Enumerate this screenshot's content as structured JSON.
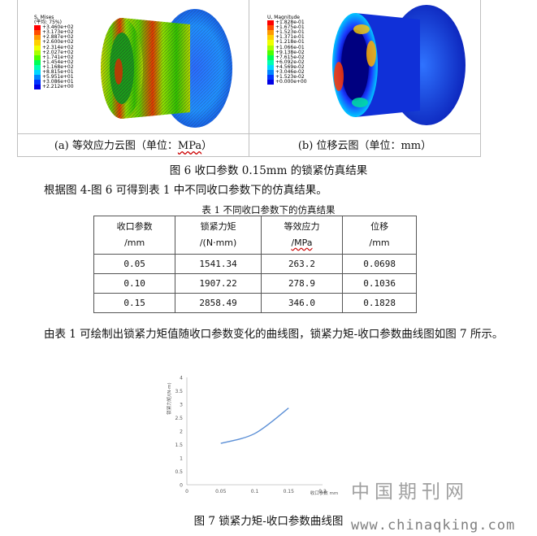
{
  "figure6": {
    "panel_a": {
      "legend_title": "S, Mises",
      "legend_subtitle": "(平均: 75%)",
      "legend_values": [
        "+3.460e+02",
        "+3.173e+02",
        "+2.887e+02",
        "+2.600e+02",
        "+2.314e+02",
        "+2.027e+02",
        "+1.741e+02",
        "+1.454e+02",
        "+1.168e+02",
        "+8.815e+01",
        "+5.951e+01",
        "+3.086e+01",
        "+2.212e+00"
      ],
      "caption_prefix": "(a) 等效应力云图（单位：",
      "caption_unit": "MPa",
      "caption_suffix": "）"
    },
    "panel_b": {
      "legend_title": "U, Magnitude",
      "legend_values": [
        "+1.828e-01",
        "+1.675e-01",
        "+1.523e-01",
        "+1.371e-01",
        "+1.218e-01",
        "+1.066e-01",
        "+9.138e-02",
        "+7.615e-02",
        "+6.092e-02",
        "+4.569e-02",
        "+3.046e-02",
        "+1.523e-02",
        "+0.000e+00"
      ],
      "caption": "(b) 位移云图（单位：mm）"
    },
    "legend_colors": [
      "#ff0000",
      "#ff4d00",
      "#ff9a00",
      "#ffd000",
      "#f0ff00",
      "#a8ff00",
      "#4dff00",
      "#00ff55",
      "#00ffb0",
      "#00d8ff",
      "#0086ff",
      "#0034ff",
      "#0000e6"
    ],
    "caption": "图 6 收口参数 0.15mm 的锁紧仿真结果"
  },
  "para1": "根据图 4-图 6 可得到表 1 中不同收口参数下的仿真结果。",
  "table1": {
    "caption": "表 1 不同收口参数下的仿真结果",
    "headers": [
      {
        "name": "收口参数",
        "unit": "/mm"
      },
      {
        "name": "锁紧力矩",
        "unit": "/(N·mm)"
      },
      {
        "name": "等效应力",
        "unit": "/MPa"
      },
      {
        "name": "位移",
        "unit": "/mm"
      }
    ],
    "rows": [
      [
        "0.05",
        "1541.34",
        "263.2",
        "0.0698"
      ],
      [
        "0.10",
        "1907.22",
        "278.9",
        "0.1036"
      ],
      [
        "0.15",
        "2858.49",
        "346.0",
        "0.1828"
      ]
    ]
  },
  "para2": "由表 1 可绘制出锁紧力矩值随收口参数变化的曲线图，锁紧力矩-收口参数曲线图如图 7 所示。",
  "chart_data": {
    "type": "line",
    "x": [
      0.05,
      0.1,
      0.15
    ],
    "series": [
      {
        "values": [
          1.54134,
          1.90722,
          2.85849
        ]
      }
    ],
    "xlabel": "收口参数 mm",
    "ylabel": "锁紧力矩/(N·m)",
    "xlim": [
      0,
      0.2
    ],
    "ylim": [
      0,
      4
    ],
    "xticks": [
      "0",
      "0.05",
      "0.1",
      "0.15",
      "0.2"
    ],
    "yticks": [
      "0",
      "0.5",
      "1",
      "1.5",
      "2",
      "2.5",
      "3",
      "3.5",
      "4"
    ],
    "grid": false,
    "color": "#5b8fd6"
  },
  "figure7_caption": "图 7  锁紧力矩-收口参数曲线图",
  "watermark": {
    "title": "中国期刊网",
    "url": "www.chinaqking.com"
  }
}
